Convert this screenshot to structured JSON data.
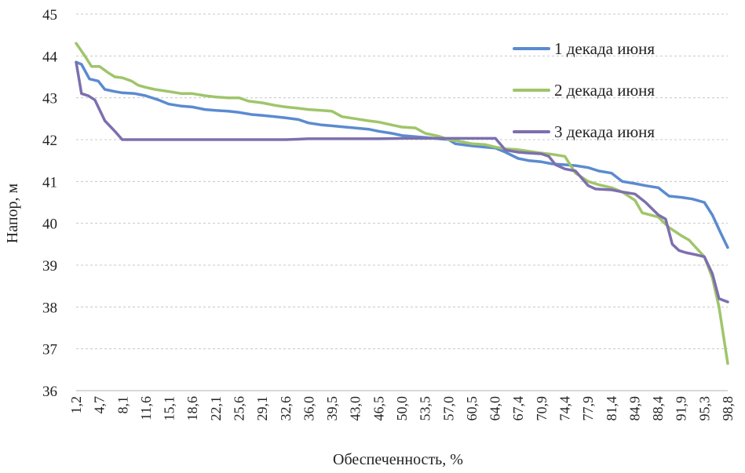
{
  "chart_data": {
    "type": "line",
    "title": "",
    "xlabel": "Обеспеченность, %",
    "ylabel": "Напор, м",
    "ylim": [
      36,
      45
    ],
    "yticks": [
      "36",
      "37",
      "38",
      "39",
      "40",
      "41",
      "42",
      "43",
      "44",
      "45"
    ],
    "xlim": [
      1.2,
      98.8
    ],
    "xtick_labels": [
      "1,2",
      "4,7",
      "8,1",
      "11,6",
      "15,1",
      "18,6",
      "22,1",
      "25,6",
      "29,1",
      "32,6",
      "36,0",
      "39,5",
      "43,0",
      "46,5",
      "50,0",
      "53,5",
      "57,0",
      "60,5",
      "64,0",
      "67,4",
      "70,9",
      "74,4",
      "77,9",
      "81,4",
      "84,9",
      "88,4",
      "91,9",
      "95,3",
      "98,8"
    ],
    "grid": true,
    "legend_position": "top-right",
    "series": [
      {
        "name": "1 декада июня",
        "color": "#5b8bd0",
        "x": [
          1.2,
          2.0,
          3.2,
          4.5,
          5.5,
          7.0,
          8.1,
          10.0,
          11.6,
          13.5,
          15.1,
          17.0,
          18.6,
          20.5,
          22.1,
          24.0,
          25.6,
          27.5,
          29.1,
          31.0,
          32.6,
          34.5,
          36.0,
          38.0,
          39.5,
          41.5,
          43.0,
          45.0,
          46.5,
          48.5,
          50.0,
          52.0,
          53.5,
          55.5,
          57.0,
          58.0,
          60.5,
          62.5,
          64.0,
          65.5,
          67.4,
          69.0,
          70.9,
          72.5,
          74.4,
          76.0,
          77.9,
          79.5,
          81.4,
          83.0,
          84.9,
          86.5,
          88.4,
          90.0,
          91.9,
          93.5,
          95.3,
          96.5,
          97.8,
          98.8
        ],
        "values": [
          43.85,
          43.8,
          43.45,
          43.4,
          43.2,
          43.15,
          43.12,
          43.1,
          43.05,
          42.95,
          42.85,
          42.8,
          42.78,
          42.72,
          42.7,
          42.68,
          42.65,
          42.6,
          42.58,
          42.55,
          42.52,
          42.48,
          42.4,
          42.35,
          42.33,
          42.3,
          42.28,
          42.25,
          42.2,
          42.15,
          42.1,
          42.07,
          42.05,
          42.02,
          42.0,
          41.9,
          41.85,
          41.82,
          41.8,
          41.7,
          41.55,
          41.5,
          41.47,
          41.42,
          41.4,
          41.38,
          41.33,
          41.25,
          41.2,
          41.0,
          40.95,
          40.9,
          40.85,
          40.65,
          40.62,
          40.58,
          40.5,
          40.2,
          39.75,
          39.42
        ]
      },
      {
        "name": "2 декада июня",
        "color": "#9fc56a",
        "x": [
          1.2,
          2.5,
          3.5,
          4.7,
          6.0,
          7.0,
          8.1,
          9.5,
          10.5,
          11.6,
          13.0,
          15.1,
          17.0,
          18.6,
          20.5,
          22.1,
          24.0,
          25.6,
          27.0,
          29.1,
          31.0,
          32.6,
          34.5,
          36.0,
          38.0,
          39.5,
          41.0,
          43.0,
          45.0,
          46.5,
          48.5,
          50.0,
          52.0,
          53.5,
          55.5,
          57.0,
          59.0,
          60.5,
          62.5,
          64.0,
          65.5,
          67.4,
          69.0,
          70.9,
          72.5,
          74.4,
          76.0,
          77.9,
          79.5,
          81.4,
          83.0,
          84.9,
          86.0,
          88.4,
          90.0,
          91.9,
          93.0,
          95.3,
          96.5,
          97.5,
          98.8
        ],
        "values": [
          44.3,
          44.0,
          43.75,
          43.75,
          43.6,
          43.5,
          43.48,
          43.4,
          43.3,
          43.25,
          43.2,
          43.15,
          43.1,
          43.1,
          43.05,
          43.02,
          43.0,
          43.0,
          42.92,
          42.88,
          42.82,
          42.78,
          42.75,
          42.72,
          42.7,
          42.68,
          42.55,
          42.5,
          42.45,
          42.42,
          42.35,
          42.3,
          42.28,
          42.15,
          42.08,
          42.0,
          41.95,
          41.9,
          41.88,
          41.82,
          41.78,
          41.76,
          41.72,
          41.68,
          41.65,
          41.6,
          41.2,
          41.0,
          40.92,
          40.85,
          40.75,
          40.55,
          40.25,
          40.15,
          39.9,
          39.7,
          39.6,
          39.2,
          38.7,
          38.0,
          36.65
        ]
      },
      {
        "name": "3 декада июня",
        "color": "#7e6fae",
        "x": [
          1.2,
          2.0,
          3.0,
          4.0,
          5.5,
          7.0,
          8.1,
          11.6,
          15.1,
          18.6,
          22.1,
          25.6,
          29.1,
          32.6,
          36.0,
          39.5,
          43.0,
          46.5,
          50.0,
          53.5,
          57.0,
          60.5,
          64.0,
          65.5,
          67.4,
          69.0,
          70.9,
          72.0,
          73.0,
          74.4,
          76.0,
          77.9,
          79.0,
          81.4,
          83.0,
          84.9,
          86.5,
          88.4,
          89.5,
          90.5,
          91.5,
          92.5,
          94.0,
          95.3,
          96.5,
          97.5,
          98.8
        ],
        "values": [
          43.85,
          43.1,
          43.05,
          42.95,
          42.45,
          42.2,
          42.0,
          42.0,
          42.0,
          42.0,
          42.0,
          42.0,
          42.0,
          42.0,
          42.02,
          42.02,
          42.02,
          42.02,
          42.03,
          42.03,
          42.03,
          42.03,
          42.03,
          41.75,
          41.7,
          41.68,
          41.66,
          41.6,
          41.4,
          41.3,
          41.25,
          40.9,
          40.82,
          40.8,
          40.75,
          40.7,
          40.5,
          40.2,
          40.1,
          39.5,
          39.35,
          39.3,
          39.25,
          39.2,
          38.8,
          38.2,
          38.12
        ]
      }
    ]
  }
}
